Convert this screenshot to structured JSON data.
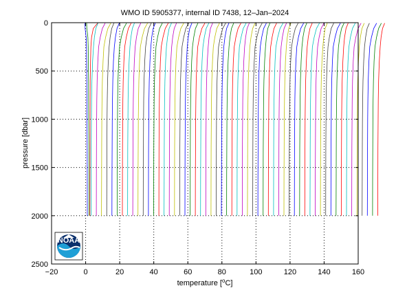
{
  "chart_data": {
    "type": "line",
    "title": "WMO ID 5905377, internal ID 7438, 12–Jan–2024",
    "xlabel": "temperature [",
    "xlabel_degree": "o",
    "xlabel_unit": "C]",
    "ylabel": "pressure [dbar]",
    "xlim": [
      -20,
      160
    ],
    "ylim": [
      0,
      2500
    ],
    "y_reversed": true,
    "x_ticks": [
      -20,
      0,
      20,
      40,
      60,
      80,
      100,
      120,
      140,
      160
    ],
    "x_tick_labels": [
      "−20",
      "0",
      "20",
      "40",
      "60",
      "80",
      "100",
      "120",
      "140",
      "160"
    ],
    "y_ticks": [
      0,
      500,
      1000,
      1500,
      2000,
      2500
    ],
    "y_tick_labels": [
      "0",
      "500",
      "1000",
      "1500",
      "2000",
      "2500"
    ],
    "grid": "dotted",
    "profile_offset_step": 0.5,
    "profile_count": 59,
    "series": [
      {
        "values": [
          [
            -0.4,
            5
          ],
          [
            -0.3,
            60
          ],
          [
            0.3,
            150
          ],
          [
            0.5,
            250
          ],
          [
            0.6,
            400
          ],
          [
            0.7,
            600
          ],
          [
            0.75,
            800
          ],
          [
            0.8,
            1000
          ],
          [
            0.9,
            1300
          ],
          [
            0.95,
            1600
          ],
          [
            1.0,
            2000
          ]
        ]
      },
      {
        "values": [
          [
            0.1,
            5
          ],
          [
            0.2,
            60
          ],
          [
            0.8,
            150
          ],
          [
            1.0,
            250
          ],
          [
            1.1,
            400
          ],
          [
            1.2,
            600
          ],
          [
            1.25,
            800
          ],
          [
            1.3,
            1000
          ],
          [
            1.4,
            1300
          ],
          [
            1.45,
            1600
          ],
          [
            1.5,
            2000
          ]
        ]
      },
      {
        "values": [
          [
            6.0,
            5
          ],
          [
            3.5,
            60
          ],
          [
            2.5,
            150
          ],
          [
            2.1,
            250
          ],
          [
            1.9,
            400
          ],
          [
            1.7,
            600
          ],
          [
            1.65,
            800
          ],
          [
            1.6,
            1000
          ],
          [
            1.6,
            1300
          ],
          [
            1.55,
            1600
          ],
          [
            1.5,
            2000
          ]
        ]
      }
    ],
    "profile_shape": [
      [
        0.0,
        5
      ],
      [
        -1.5,
        60
      ],
      [
        -2.6,
        150
      ],
      [
        -3.4,
        250
      ],
      [
        -3.9,
        400
      ],
      [
        -4.3,
        600
      ],
      [
        -4.5,
        800
      ],
      [
        -4.6,
        1000
      ],
      [
        -4.7,
        1300
      ],
      [
        -4.75,
        1600
      ],
      [
        -4.8,
        2000
      ]
    ],
    "profile_colors": [
      "#0000ff",
      "#008000",
      "#ff0000",
      "#00bfbf",
      "#bf00bf",
      "#bfbf00",
      "#404040"
    ],
    "logo_text": "NOAA"
  }
}
